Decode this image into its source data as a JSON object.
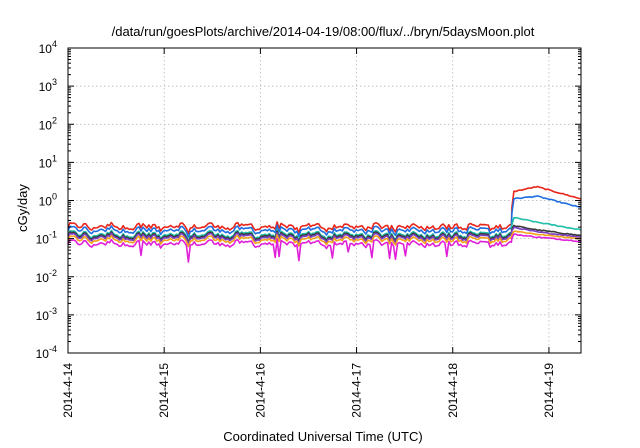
{
  "chart_data": {
    "type": "line",
    "title": "/data/run/goesPlots/archive/2014-04-19/08:00/flux/../bryn/5daysMoon.plot",
    "xlabel": "Coordinated Universal Time (UTC)",
    "ylabel": "cGy/day",
    "yscale": "log",
    "ylim": [
      0.0001,
      10000
    ],
    "xlim": [
      "2014-04-14 00:00",
      "2014-04-19 08:00"
    ],
    "xtick_labels": [
      "2014-4-14",
      "2014-4-15",
      "2014-4-16",
      "2014-4-17",
      "2014-4-18",
      "2014-4-19"
    ],
    "ytick_labels": [
      {
        "base": "10",
        "exp": "4"
      },
      {
        "base": "10",
        "exp": "3"
      },
      {
        "base": "10",
        "exp": "2"
      },
      {
        "base": "10",
        "exp": "1"
      },
      {
        "base": "10",
        "exp": "0"
      },
      {
        "base": "10",
        "exp": "-1"
      },
      {
        "base": "10",
        "exp": "-2"
      },
      {
        "base": "10",
        "exp": "-3"
      },
      {
        "base": "10",
        "exp": "-4"
      }
    ],
    "grid": true,
    "legend": "none",
    "series": [
      {
        "color": "#e8261c",
        "baseline": 0.21,
        "x": [
          "2014-04-14 00:00",
          "2014-04-18 14:30",
          "2014-04-18 15:00",
          "2014-04-18 21:00",
          "2014-04-19 08:00"
        ],
        "values": [
          0.21,
          0.23,
          1.7,
          2.3,
          1.1
        ]
      },
      {
        "color": "#1f6fe0",
        "baseline": 0.17,
        "x": [
          "2014-04-14 00:00",
          "2014-04-18 14:30",
          "2014-04-18 15:00",
          "2014-04-18 21:00",
          "2014-04-19 08:00"
        ],
        "values": [
          0.17,
          0.18,
          1.1,
          1.3,
          0.65
        ]
      },
      {
        "color": "#1fbfa8",
        "baseline": 0.13,
        "x": [
          "2014-04-14 00:00",
          "2014-04-18 14:30",
          "2014-04-18 15:00",
          "2014-04-18 21:00",
          "2014-04-19 08:00"
        ],
        "values": [
          0.13,
          0.14,
          0.36,
          0.27,
          0.17
        ]
      },
      {
        "color": "#3a3a3a",
        "baseline": 0.12,
        "x": [
          "2014-04-14 00:00",
          "2014-04-18 14:30",
          "2014-04-18 15:00",
          "2014-04-18 21:00",
          "2014-04-19 08:00"
        ],
        "values": [
          0.12,
          0.13,
          0.22,
          0.17,
          0.12
        ]
      },
      {
        "color": "#7b3fc4",
        "baseline": 0.11,
        "x": [
          "2014-04-14 00:00",
          "2014-04-18 14:30",
          "2014-04-18 15:00",
          "2014-04-18 21:00",
          "2014-04-19 08:00"
        ],
        "values": [
          0.11,
          0.12,
          0.2,
          0.15,
          0.11
        ]
      },
      {
        "color": "#f2a11b",
        "baseline": 0.095,
        "x": [
          "2014-04-14 00:00",
          "2014-04-18 14:30",
          "2014-04-18 15:00",
          "2014-04-18 21:00",
          "2014-04-19 08:00"
        ],
        "values": [
          0.095,
          0.1,
          0.16,
          0.13,
          0.1
        ]
      },
      {
        "color": "#e020d8",
        "baseline": 0.075,
        "x": [
          "2014-04-14 00:00",
          "2014-04-18 14:30",
          "2014-04-18 15:00",
          "2014-04-18 21:00",
          "2014-04-19 08:00"
        ],
        "values": [
          0.075,
          0.08,
          0.13,
          0.11,
          0.085
        ]
      }
    ]
  }
}
